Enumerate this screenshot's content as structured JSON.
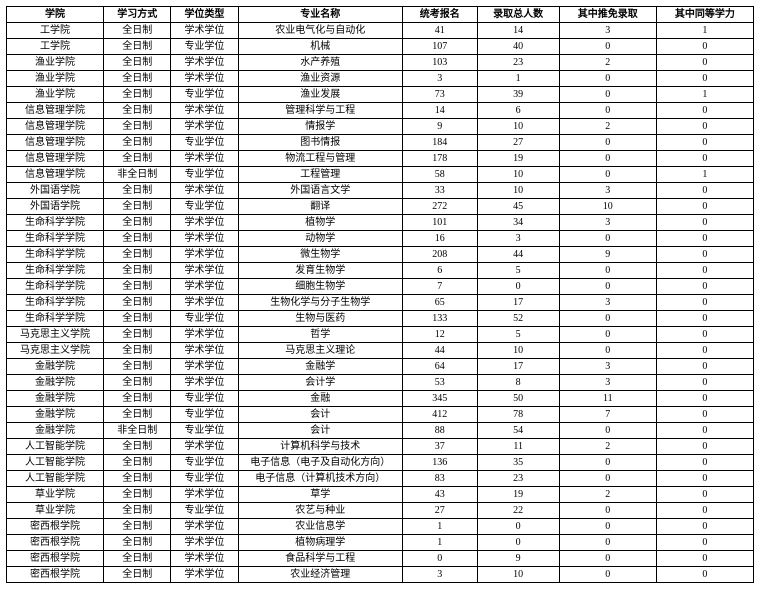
{
  "table": {
    "columns": [
      "学院",
      "学习方式",
      "学位类型",
      "专业名称",
      "统考报名",
      "录取总人数",
      "其中推免录取",
      "其中同等学力"
    ],
    "rows": [
      [
        "工学院",
        "全日制",
        "学术学位",
        "农业电气化与自动化",
        "41",
        "14",
        "3",
        "1"
      ],
      [
        "工学院",
        "全日制",
        "专业学位",
        "机械",
        "107",
        "40",
        "0",
        "0"
      ],
      [
        "渔业学院",
        "全日制",
        "学术学位",
        "水产养殖",
        "103",
        "23",
        "2",
        "0"
      ],
      [
        "渔业学院",
        "全日制",
        "学术学位",
        "渔业资源",
        "3",
        "1",
        "0",
        "0"
      ],
      [
        "渔业学院",
        "全日制",
        "专业学位",
        "渔业发展",
        "73",
        "39",
        "0",
        "1"
      ],
      [
        "信息管理学院",
        "全日制",
        "学术学位",
        "管理科学与工程",
        "14",
        "6",
        "0",
        "0"
      ],
      [
        "信息管理学院",
        "全日制",
        "学术学位",
        "情报学",
        "9",
        "10",
        "2",
        "0"
      ],
      [
        "信息管理学院",
        "全日制",
        "专业学位",
        "图书情报",
        "184",
        "27",
        "0",
        "0"
      ],
      [
        "信息管理学院",
        "全日制",
        "学术学位",
        "物流工程与管理",
        "178",
        "19",
        "0",
        "0"
      ],
      [
        "信息管理学院",
        "非全日制",
        "专业学位",
        "工程管理",
        "58",
        "10",
        "0",
        "1"
      ],
      [
        "外国语学院",
        "全日制",
        "学术学位",
        "外国语言文学",
        "33",
        "10",
        "3",
        "0"
      ],
      [
        "外国语学院",
        "全日制",
        "专业学位",
        "翻译",
        "272",
        "45",
        "10",
        "0"
      ],
      [
        "生命科学学院",
        "全日制",
        "学术学位",
        "植物学",
        "101",
        "34",
        "3",
        "0"
      ],
      [
        "生命科学学院",
        "全日制",
        "学术学位",
        "动物学",
        "16",
        "3",
        "0",
        "0"
      ],
      [
        "生命科学学院",
        "全日制",
        "学术学位",
        "微生物学",
        "208",
        "44",
        "9",
        "0"
      ],
      [
        "生命科学学院",
        "全日制",
        "学术学位",
        "发育生物学",
        "6",
        "5",
        "0",
        "0"
      ],
      [
        "生命科学学院",
        "全日制",
        "学术学位",
        "细胞生物学",
        "7",
        "0",
        "0",
        "0"
      ],
      [
        "生命科学学院",
        "全日制",
        "学术学位",
        "生物化学与分子生物学",
        "65",
        "17",
        "3",
        "0"
      ],
      [
        "生命科学学院",
        "全日制",
        "专业学位",
        "生物与医药",
        "133",
        "52",
        "0",
        "0"
      ],
      [
        "马克思主义学院",
        "全日制",
        "学术学位",
        "哲学",
        "12",
        "5",
        "0",
        "0"
      ],
      [
        "马克思主义学院",
        "全日制",
        "学术学位",
        "马克思主义理论",
        "44",
        "10",
        "0",
        "0"
      ],
      [
        "金融学院",
        "全日制",
        "学术学位",
        "金融学",
        "64",
        "17",
        "3",
        "0"
      ],
      [
        "金融学院",
        "全日制",
        "学术学位",
        "会计学",
        "53",
        "8",
        "3",
        "0"
      ],
      [
        "金融学院",
        "全日制",
        "专业学位",
        "金融",
        "345",
        "50",
        "11",
        "0"
      ],
      [
        "金融学院",
        "全日制",
        "专业学位",
        "会计",
        "412",
        "78",
        "7",
        "0"
      ],
      [
        "金融学院",
        "非全日制",
        "专业学位",
        "会计",
        "88",
        "54",
        "0",
        "0"
      ],
      [
        "人工智能学院",
        "全日制",
        "学术学位",
        "计算机科学与技术",
        "37",
        "11",
        "2",
        "0"
      ],
      [
        "人工智能学院",
        "全日制",
        "专业学位",
        "电子信息（电子及自动化方向）",
        "136",
        "35",
        "0",
        "0"
      ],
      [
        "人工智能学院",
        "全日制",
        "专业学位",
        "电子信息（计算机技术方向）",
        "83",
        "23",
        "0",
        "0"
      ],
      [
        "草业学院",
        "全日制",
        "学术学位",
        "草学",
        "43",
        "19",
        "2",
        "0"
      ],
      [
        "草业学院",
        "全日制",
        "专业学位",
        "农艺与种业",
        "27",
        "22",
        "0",
        "0"
      ],
      [
        "密西根学院",
        "全日制",
        "学术学位",
        "农业信息学",
        "1",
        "0",
        "0",
        "0"
      ],
      [
        "密西根学院",
        "全日制",
        "学术学位",
        "植物病理学",
        "1",
        "0",
        "0",
        "0"
      ],
      [
        "密西根学院",
        "全日制",
        "学术学位",
        "食品科学与工程",
        "0",
        "9",
        "0",
        "0"
      ],
      [
        "密西根学院",
        "全日制",
        "学术学位",
        "农业经济管理",
        "3",
        "10",
        "0",
        "0"
      ]
    ]
  }
}
